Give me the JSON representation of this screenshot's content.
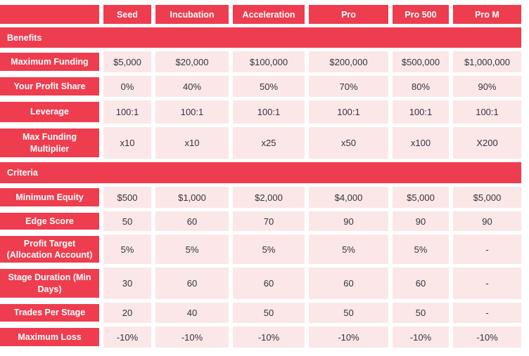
{
  "header": {
    "corner": "",
    "plans": [
      "Seed",
      "Incubation",
      "Acceleration",
      "Pro",
      "Pro 500",
      "Pro M"
    ]
  },
  "sections": [
    {
      "title": "Benefits",
      "rows": [
        {
          "label": "Maximum Funding",
          "values": [
            "$5,000",
            "$20,000",
            "$100,000",
            "$200,000",
            "$500,000",
            "$1,000,000"
          ]
        },
        {
          "label": "Your Profit Share",
          "values": [
            "0%",
            "40%",
            "50%",
            "70%",
            "80%",
            "90%"
          ]
        },
        {
          "label": "Leverage",
          "values": [
            "100:1",
            "100:1",
            "100:1",
            "100:1",
            "100:1",
            "100:1"
          ]
        },
        {
          "label": "Max Funding Multiplier",
          "values": [
            "x10",
            "x10",
            "x25",
            "x50",
            "x100",
            "X200"
          ]
        }
      ]
    },
    {
      "title": "Criteria",
      "rows": [
        {
          "label": "Minimum Equity",
          "values": [
            "$500",
            "$1,000",
            "$2,000",
            "$4,000",
            "$5,000",
            "$5,000"
          ]
        },
        {
          "label": "Edge Score",
          "values": [
            "50",
            "60",
            "70",
            "90",
            "90",
            "90"
          ]
        },
        {
          "label": "Profit Target (Allocation Account)",
          "values": [
            "5%",
            "5%",
            "5%",
            "5%",
            "5%",
            "-"
          ]
        },
        {
          "label": "Stage Duration (Min Days)",
          "values": [
            "30",
            "60",
            "60",
            "60",
            "60",
            "-"
          ]
        },
        {
          "label": "Trades Per Stage",
          "values": [
            "20",
            "40",
            "50",
            "50",
            "50",
            "-"
          ]
        },
        {
          "label": "Maximum Loss",
          "values": [
            "-10%",
            "-10%",
            "-10%",
            "-10%",
            "-10%",
            "-10%"
          ]
        }
      ]
    }
  ],
  "colors": {
    "accent_red": "#EE3D4E",
    "cell_pink": "#FBE7E8",
    "value_text": "#33333D"
  }
}
